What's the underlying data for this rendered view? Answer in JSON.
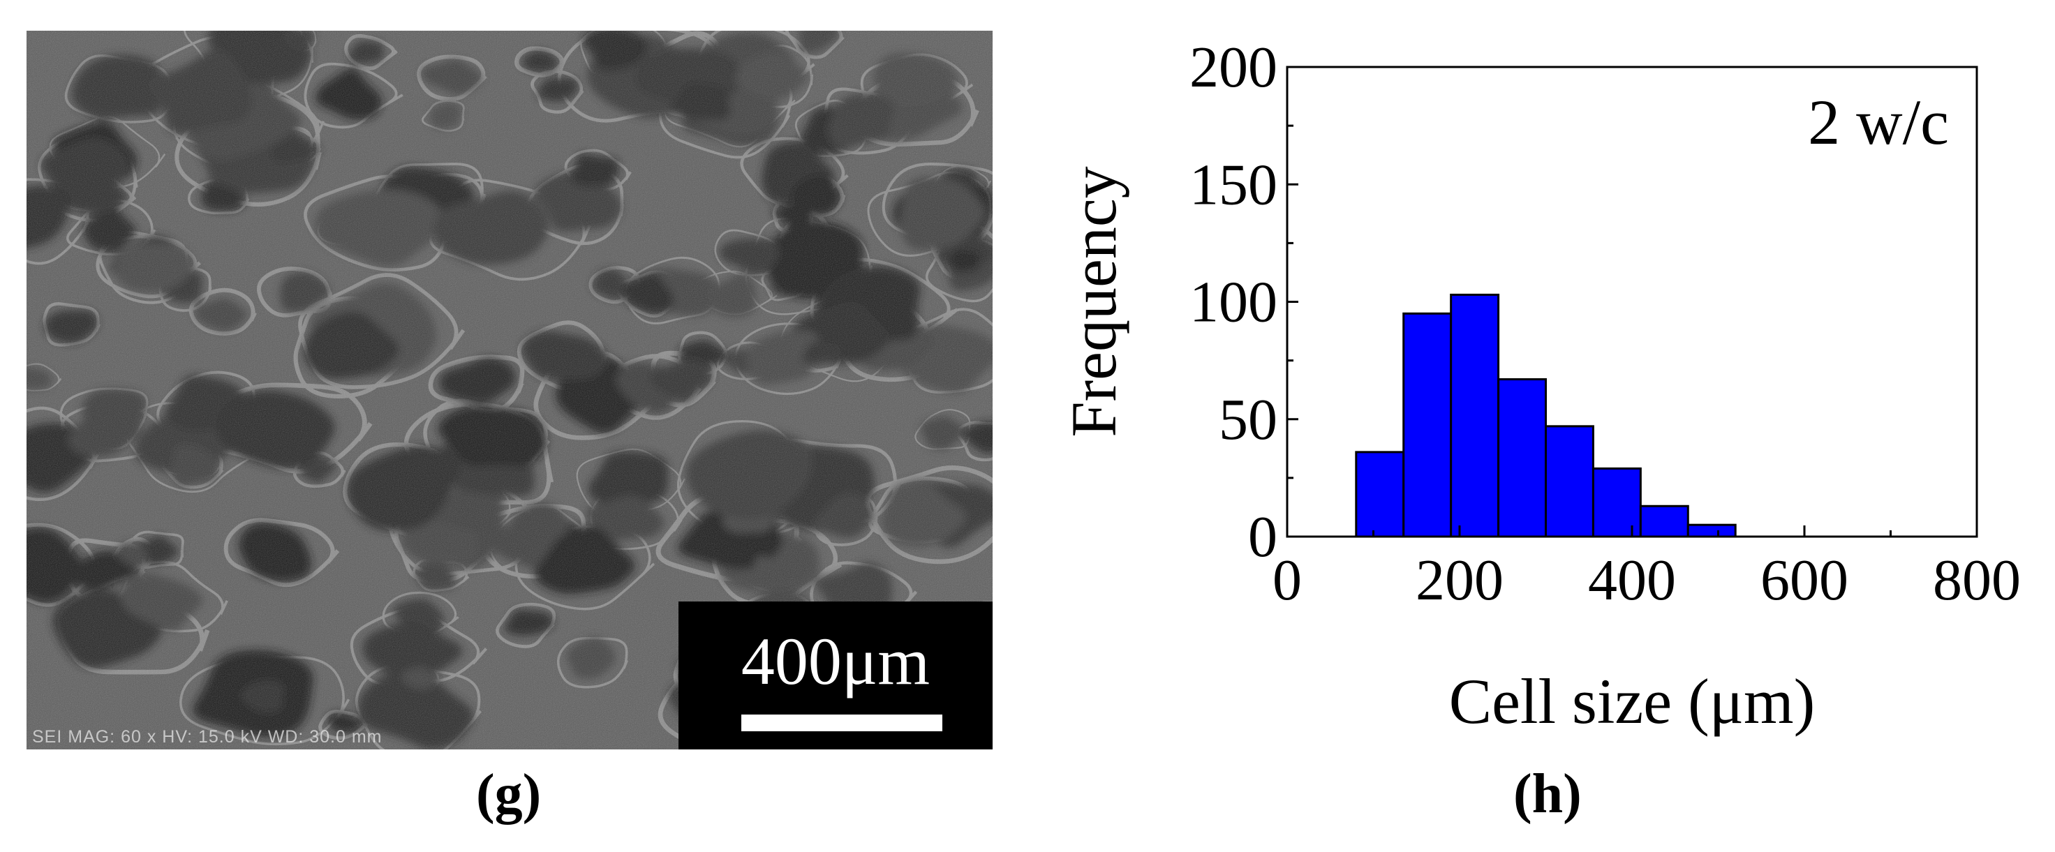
{
  "panels": {
    "left_label": "(g)",
    "right_label": "(h)"
  },
  "sem_image": {
    "scale_bar_text": "400μm",
    "info_text": "SEI  MAG: 60 x  HV: 15.0 kV  WD: 30.0 mm",
    "colors": {
      "background": "#5a5a5a",
      "pore": "#1e1e1e",
      "wall": "#b4b4b4"
    }
  },
  "chart_data": {
    "type": "bar",
    "subtype": "histogram",
    "annotation": "2 w/c",
    "xlabel": "Cell size (μm)",
    "ylabel": "Frequency",
    "xlim": [
      0,
      800
    ],
    "ylim": [
      0,
      200
    ],
    "xticks": [
      0,
      200,
      400,
      600,
      800
    ],
    "yticks": [
      0,
      50,
      100,
      150,
      200
    ],
    "bin_width": 55,
    "bins": [
      {
        "start": 80,
        "end": 135,
        "value": 36
      },
      {
        "start": 135,
        "end": 190,
        "value": 95
      },
      {
        "start": 190,
        "end": 245,
        "value": 103
      },
      {
        "start": 245,
        "end": 300,
        "value": 67
      },
      {
        "start": 300,
        "end": 355,
        "value": 47
      },
      {
        "start": 355,
        "end": 410,
        "value": 29
      },
      {
        "start": 410,
        "end": 465,
        "value": 13
      },
      {
        "start": 465,
        "end": 520,
        "value": 5
      }
    ],
    "bar_color": "#0000ff",
    "bar_edge_color": "#000000",
    "grid": false,
    "legend": "none"
  }
}
